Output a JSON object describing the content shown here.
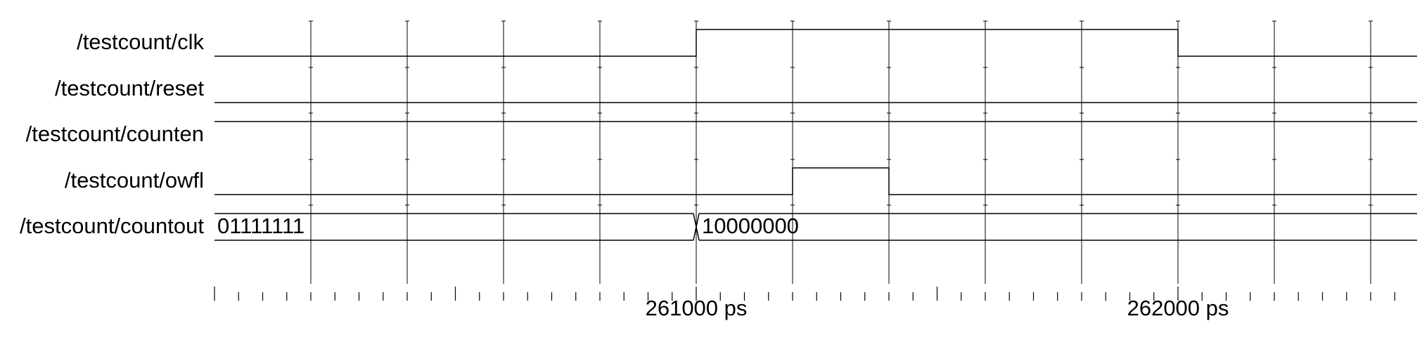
{
  "timeline": {
    "start_ps": 260000,
    "end_ps": 262500,
    "major_labels": [
      {
        "value_ps": 261000,
        "label": "261000 ps"
      },
      {
        "value_ps": 262000,
        "label": "262000 ps"
      }
    ],
    "minor_tick_step_ps": 50,
    "mid_tick_step_ps": 500,
    "grid_step_ps": 200
  },
  "signals": [
    {
      "name": "/testcount/clk",
      "kind": "bit",
      "initial": 0,
      "transitions": [
        {
          "t_ps": 261000,
          "v": 1
        },
        {
          "t_ps": 262000,
          "v": 0
        }
      ]
    },
    {
      "name": "/testcount/reset",
      "kind": "bit",
      "initial": 0,
      "transitions": []
    },
    {
      "name": "/testcount/counten",
      "kind": "bit",
      "initial": 1,
      "transitions": []
    },
    {
      "name": "/testcount/owfl",
      "kind": "bit",
      "initial": 0,
      "transitions": [
        {
          "t_ps": 261200,
          "v": 1
        },
        {
          "t_ps": 261400,
          "v": 0
        }
      ]
    },
    {
      "name": "/testcount/countout",
      "kind": "bus",
      "initial": "01111111",
      "transitions": [
        {
          "t_ps": 261000,
          "v": "10000000"
        }
      ]
    }
  ]
}
